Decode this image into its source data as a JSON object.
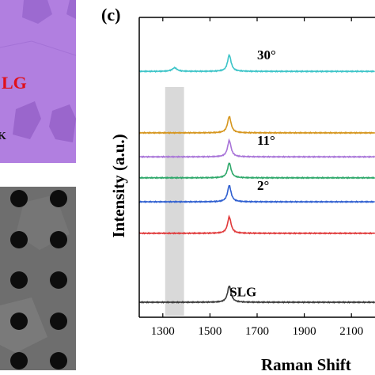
{
  "panels": {
    "optical_image": {
      "label_slg": "LG",
      "label_k": "K",
      "label_color": "#e0101a",
      "bg_color": "#b17fe0"
    },
    "sem_image": {
      "bg_color": "#6e6e6e",
      "hole_color": "#0d0d0d"
    }
  },
  "chart_data": {
    "type": "line",
    "panel_label": "(c)",
    "xlabel": "Raman Shift",
    "ylabel": "Intensity (a.u.)",
    "xlim": [
      1200,
      2200
    ],
    "xticks": [
      1300,
      1500,
      1700,
      1900,
      2100
    ],
    "grid": false,
    "legend": "none",
    "highlight_band": {
      "x": [
        1310,
        1390
      ],
      "color": "#d9d9d9"
    },
    "peak_center": 1582,
    "series": [
      {
        "name": "30°",
        "color": "#3cc4c8",
        "baseline": 0.82,
        "peak_height": 0.055,
        "extra_peak": {
          "x": 1350,
          "height": 0.012
        }
      },
      {
        "color": "#d6961e",
        "baseline": 0.615,
        "peak_height": 0.055
      },
      {
        "name": "11°",
        "color": "#a874d8",
        "baseline": 0.535,
        "peak_height": 0.055
      },
      {
        "color": "#2ea86a",
        "baseline": 0.465,
        "peak_height": 0.05
      },
      {
        "name": "2°",
        "color": "#2f5fd0",
        "baseline": 0.385,
        "peak_height": 0.055
      },
      {
        "color": "#e0393a",
        "baseline": 0.28,
        "peak_height": 0.055
      },
      {
        "name": "SLG",
        "color": "#3a3a3a",
        "baseline": 0.05,
        "peak_height": 0.055
      }
    ]
  }
}
